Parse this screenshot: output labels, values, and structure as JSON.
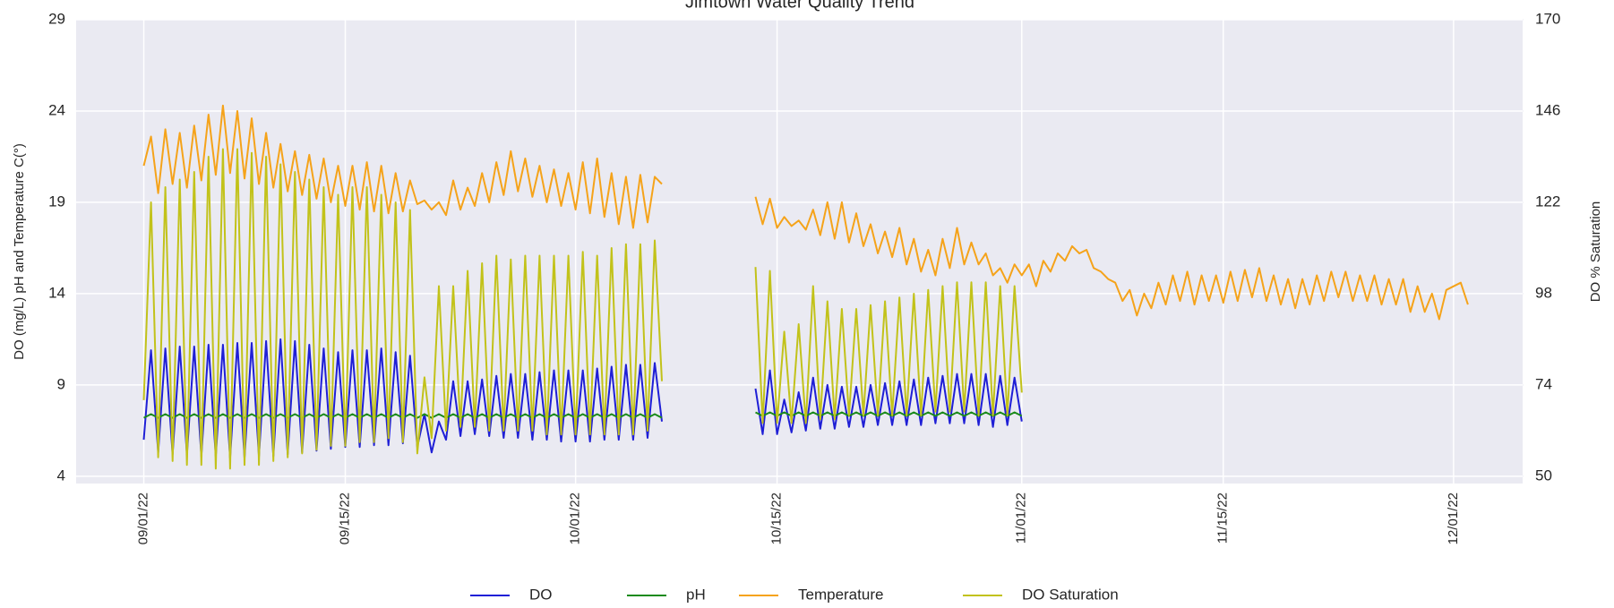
{
  "chart_data": {
    "type": "line",
    "title": "Jimtown Water Quality Trend",
    "y_label": "DO (mg/L) pH and Temperature C(°)",
    "y2_label": "DO % Saturation",
    "xlim": [
      -4.7,
      95.8
    ],
    "xticks": [
      {
        "value": 0,
        "label": "09/01/22"
      },
      {
        "value": 14,
        "label": "09/15/22"
      },
      {
        "value": 30,
        "label": "10/01/22"
      },
      {
        "value": 44,
        "label": "10/15/22"
      },
      {
        "value": 61,
        "label": "11/01/22"
      },
      {
        "value": 75,
        "label": "11/15/22"
      },
      {
        "value": 91,
        "label": "12/01/22"
      }
    ],
    "ylim": [
      3.6,
      29
    ],
    "yticks": [
      4,
      9,
      14,
      19,
      24,
      29
    ],
    "y2lim": [
      48.1,
      170
    ],
    "y2ticks": [
      50,
      74,
      98,
      122,
      146,
      170
    ],
    "grid": true,
    "legend": "bottom",
    "x": [
      0,
      0.5,
      1,
      1.5,
      2,
      2.5,
      3,
      3.5,
      4,
      4.5,
      5,
      5.5,
      6,
      6.5,
      7,
      7.5,
      8,
      8.5,
      9,
      9.5,
      10,
      10.5,
      11,
      11.5,
      12,
      12.5,
      13,
      13.5,
      14,
      14.5,
      15,
      15.5,
      16,
      16.5,
      17,
      17.5,
      18,
      18.5,
      19,
      19.5,
      20,
      20.5,
      21,
      21.5,
      22,
      22.5,
      23,
      23.5,
      24,
      24.5,
      25,
      25.5,
      26,
      26.5,
      27,
      27.5,
      28,
      28.5,
      29,
      29.5,
      30,
      30.5,
      31,
      31.5,
      32,
      32.5,
      33,
      33.5,
      34,
      34.5,
      35,
      35.5,
      36,
      36.5,
      37,
      37.5,
      38,
      38.5,
      39,
      39.5,
      40,
      40.5,
      41,
      41.5,
      42,
      42.5,
      43,
      43.5,
      44,
      44.5,
      45,
      45.5,
      46,
      46.5,
      47,
      47.5,
      48,
      48.5,
      49,
      49.5,
      50,
      50.5,
      51,
      51.5,
      52,
      52.5,
      53,
      53.5,
      54,
      54.5,
      55,
      55.5,
      56,
      56.5,
      57,
      57.5,
      58,
      58.5,
      59,
      59.5,
      60,
      60.5,
      61,
      61.5,
      62,
      62.5,
      63,
      63.5,
      64,
      64.5,
      65,
      65.5,
      66,
      66.5,
      67,
      67.5,
      68,
      68.5,
      69,
      69.5,
      70,
      70.5,
      71,
      71.5,
      72,
      72.5,
      73,
      73.5,
      74,
      74.5,
      75,
      75.5,
      76,
      76.5,
      77,
      77.5,
      78,
      78.5,
      79,
      79.5,
      80,
      80.5,
      81,
      81.5,
      82,
      82.5,
      83,
      83.5,
      84,
      84.5,
      85,
      85.5,
      86,
      86.5,
      87,
      87.5,
      88,
      88.5,
      89,
      89.5,
      90,
      90.5,
      91,
      91.5,
      92
    ],
    "series": [
      {
        "name": "DO",
        "color": "#1f1fd6",
        "values": [
          6.0,
          10.9,
          5.3,
          11.0,
          5.2,
          11.1,
          5.2,
          11.1,
          5.1,
          11.2,
          5.1,
          11.2,
          5.0,
          11.3,
          5.0,
          11.3,
          5.1,
          11.4,
          5.1,
          11.5,
          5.2,
          11.4,
          5.3,
          11.2,
          5.4,
          11.0,
          5.5,
          10.8,
          5.6,
          10.9,
          5.6,
          10.9,
          5.7,
          11.0,
          5.7,
          10.8,
          5.8,
          10.6,
          5.6,
          7.4,
          5.3,
          7.0,
          6.0,
          9.2,
          6.2,
          9.2,
          6.3,
          9.3,
          6.2,
          9.5,
          6.1,
          9.6,
          6.1,
          9.6,
          6.0,
          9.7,
          6.0,
          9.8,
          5.9,
          9.8,
          5.9,
          9.8,
          5.9,
          9.9,
          6.0,
          10.0,
          6.0,
          10.1,
          6.0,
          10.1,
          6.1,
          10.2,
          7.0,
          null,
          null,
          null,
          null,
          null,
          null,
          null,
          null,
          null,
          null,
          null,
          null,
          8.8,
          6.3,
          9.8,
          6.3,
          8.2,
          6.4,
          8.6,
          6.5,
          9.4,
          6.6,
          9.0,
          6.6,
          8.9,
          6.7,
          8.9,
          6.7,
          9.0,
          6.8,
          9.1,
          6.8,
          9.2,
          6.8,
          9.3,
          6.8,
          9.4,
          6.9,
          9.5,
          6.9,
          9.6,
          6.9,
          9.6,
          6.8,
          9.6,
          6.7,
          9.5,
          6.8,
          9.4,
          7.0,
          null,
          null,
          null,
          null,
          null,
          null,
          null,
          null,
          null,
          null,
          null,
          null,
          null,
          null,
          null,
          null,
          null,
          null,
          null,
          null,
          null,
          null,
          null,
          null,
          null,
          null,
          null,
          null,
          null,
          null,
          null,
          null,
          null,
          null,
          null,
          null,
          null,
          null,
          null,
          null,
          null,
          null,
          null,
          null,
          null,
          null,
          null,
          null,
          null,
          null,
          null,
          null,
          null,
          null,
          null,
          null,
          null,
          null,
          null,
          null,
          null,
          null
        ]
      },
      {
        "name": "pH",
        "color": "#1a8a1a",
        "values": [
          7.2,
          7.4,
          7.2,
          7.4,
          7.2,
          7.4,
          7.2,
          7.4,
          7.2,
          7.4,
          7.2,
          7.4,
          7.2,
          7.4,
          7.2,
          7.4,
          7.2,
          7.4,
          7.2,
          7.4,
          7.2,
          7.4,
          7.2,
          7.4,
          7.2,
          7.4,
          7.2,
          7.4,
          7.2,
          7.4,
          7.2,
          7.4,
          7.2,
          7.4,
          7.2,
          7.4,
          7.2,
          7.4,
          7.2,
          7.4,
          7.2,
          7.4,
          7.2,
          7.4,
          7.2,
          7.4,
          7.2,
          7.4,
          7.2,
          7.4,
          7.2,
          7.4,
          7.2,
          7.4,
          7.2,
          7.4,
          7.2,
          7.4,
          7.2,
          7.4,
          7.2,
          7.4,
          7.2,
          7.4,
          7.2,
          7.4,
          7.2,
          7.4,
          7.2,
          7.4,
          7.2,
          7.4,
          7.2,
          null,
          null,
          null,
          null,
          null,
          null,
          null,
          null,
          null,
          null,
          null,
          null,
          7.5,
          7.3,
          7.5,
          7.3,
          7.5,
          7.3,
          7.5,
          7.3,
          7.5,
          7.3,
          7.5,
          7.3,
          7.5,
          7.3,
          7.5,
          7.3,
          7.5,
          7.3,
          7.5,
          7.3,
          7.5,
          7.3,
          7.5,
          7.3,
          7.5,
          7.3,
          7.5,
          7.3,
          7.5,
          7.3,
          7.5,
          7.3,
          7.5,
          7.3,
          7.5,
          7.3,
          7.5,
          7.3,
          null,
          null,
          null,
          null,
          null,
          null,
          null,
          null,
          null,
          null,
          null,
          null,
          null,
          null,
          null,
          null,
          null,
          null,
          null,
          null,
          null,
          null,
          null,
          null,
          null,
          null,
          null,
          null,
          null,
          null,
          null,
          null,
          null,
          null,
          null,
          null,
          null,
          null,
          null,
          null,
          null,
          null,
          null,
          null,
          null,
          null,
          null,
          null,
          null,
          null,
          null,
          null,
          null,
          null,
          null,
          null,
          null,
          null,
          null,
          null,
          null,
          null
        ]
      },
      {
        "name": "Temperature",
        "color": "#f5a31a",
        "values": [
          21.0,
          22.6,
          19.5,
          23.0,
          20.0,
          22.8,
          19.8,
          23.2,
          20.2,
          23.8,
          20.5,
          24.3,
          20.6,
          24.0,
          20.3,
          23.6,
          20.0,
          22.8,
          19.8,
          22.2,
          19.6,
          21.8,
          19.4,
          21.6,
          19.2,
          21.4,
          19.0,
          21.0,
          18.8,
          21.0,
          18.6,
          21.2,
          18.5,
          21.0,
          18.4,
          20.6,
          18.5,
          20.2,
          18.9,
          19.1,
          18.6,
          19.0,
          18.3,
          20.2,
          18.6,
          19.8,
          18.8,
          20.6,
          19.0,
          21.2,
          19.4,
          21.8,
          19.6,
          21.4,
          19.3,
          21.0,
          19.0,
          20.8,
          18.8,
          20.6,
          18.6,
          21.2,
          18.4,
          21.4,
          18.2,
          20.6,
          17.8,
          20.4,
          17.6,
          20.5,
          17.9,
          20.4,
          20.0,
          null,
          null,
          null,
          null,
          null,
          null,
          null,
          null,
          null,
          null,
          null,
          null,
          19.3,
          17.8,
          19.2,
          17.6,
          18.2,
          17.7,
          18.0,
          17.5,
          18.6,
          17.2,
          19.0,
          17.0,
          19.0,
          16.8,
          18.4,
          16.6,
          17.8,
          16.2,
          17.4,
          16.0,
          17.6,
          15.6,
          17.0,
          15.2,
          16.4,
          15.0,
          17.0,
          15.4,
          17.6,
          15.6,
          16.8,
          15.6,
          16.2,
          15.0,
          15.4,
          14.6,
          15.6,
          15.0,
          15.6,
          14.4,
          15.8,
          15.2,
          16.2,
          15.8,
          16.6,
          16.2,
          16.4,
          15.4,
          15.2,
          14.8,
          14.6,
          13.6,
          14.2,
          12.8,
          14.0,
          13.2,
          14.6,
          13.4,
          15.0,
          13.6,
          15.2,
          13.4,
          15.0,
          13.6,
          15.0,
          13.5,
          15.2,
          13.6,
          15.3,
          13.8,
          15.4,
          13.6,
          15.0,
          13.4,
          14.8,
          13.2,
          14.8,
          13.4,
          15.0,
          13.6,
          15.2,
          13.8,
          15.2,
          13.6,
          15.0,
          13.6,
          15.0,
          13.4,
          14.8,
          13.4,
          14.8,
          13.0,
          14.4,
          13.0,
          14.0,
          12.6,
          14.2,
          14.4,
          14.6,
          13.4
        ]
      },
      {
        "name": "DO Saturation",
        "color": "#c2c21a",
        "axis": "y2",
        "values": [
          70,
          122,
          55,
          126,
          54,
          128,
          53,
          130,
          53,
          134,
          52,
          136,
          52,
          136,
          53,
          135,
          53,
          134,
          54,
          132,
          55,
          130,
          56,
          128,
          57,
          126,
          58,
          124,
          58,
          126,
          59,
          126,
          59,
          124,
          60,
          122,
          59,
          120,
          56,
          76,
          60,
          100,
          62,
          100,
          63,
          104,
          63,
          106,
          62,
          108,
          62,
          107,
          62,
          108,
          62,
          108,
          61,
          108,
          61,
          108,
          61,
          109,
          61,
          108,
          61,
          110,
          61,
          111,
          61,
          111,
          62,
          112,
          75,
          null,
          null,
          null,
          null,
          null,
          null,
          null,
          null,
          null,
          null,
          null,
          null,
          105,
          64,
          104,
          64,
          88,
          64,
          90,
          64,
          100,
          65,
          96,
          65,
          94,
          66,
          94,
          66,
          95,
          66,
          96,
          66,
          97,
          66,
          98,
          66,
          99,
          67,
          100,
          67,
          101,
          67,
          101,
          66,
          101,
          66,
          100,
          66,
          100,
          72,
          null,
          null,
          null,
          null,
          null,
          null,
          null,
          null,
          null,
          null,
          null,
          null,
          null,
          null,
          null,
          null,
          null,
          null,
          null,
          null,
          null,
          null,
          null,
          null,
          null,
          null,
          null,
          null,
          null,
          null,
          null,
          null,
          null,
          null,
          null,
          null,
          null,
          null,
          null,
          null,
          null,
          null,
          null,
          null,
          null,
          null,
          null,
          null,
          null,
          null,
          null,
          null,
          null,
          null,
          null,
          null,
          null,
          null,
          null,
          null,
          null,
          null
        ]
      }
    ]
  }
}
